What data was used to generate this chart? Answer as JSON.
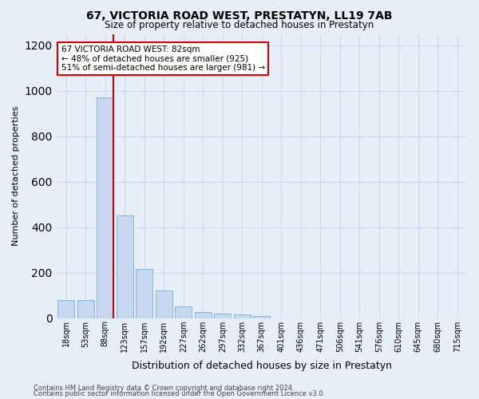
{
  "title": "67, VICTORIA ROAD WEST, PRESTATYN, LL19 7AB",
  "subtitle": "Size of property relative to detached houses in Prestatyn",
  "xlabel": "Distribution of detached houses by size in Prestatyn",
  "ylabel": "Number of detached properties",
  "bar_color": "#c5d8f0",
  "bar_edge_color": "#7aafd4",
  "bg_color": "#e8eef8",
  "grid_color": "#d0d8e8",
  "categories": [
    "18sqm",
    "53sqm",
    "88sqm",
    "123sqm",
    "157sqm",
    "192sqm",
    "227sqm",
    "262sqm",
    "297sqm",
    "332sqm",
    "367sqm",
    "401sqm",
    "436sqm",
    "471sqm",
    "506sqm",
    "541sqm",
    "576sqm",
    "610sqm",
    "645sqm",
    "680sqm",
    "715sqm"
  ],
  "values": [
    80,
    80,
    970,
    450,
    215,
    120,
    50,
    25,
    20,
    15,
    10,
    0,
    0,
    0,
    0,
    0,
    0,
    0,
    0,
    0,
    0
  ],
  "marker_bin_index": 2,
  "marker_color": "#cc0000",
  "annotation_text": "67 VICTORIA ROAD WEST: 82sqm\n← 48% of detached houses are smaller (925)\n51% of semi-detached houses are larger (981) →",
  "annotation_box_color": "#ffffff",
  "annotation_border_color": "#cc0000",
  "ylim": [
    0,
    1250
  ],
  "yticks": [
    0,
    200,
    400,
    600,
    800,
    1000,
    1200
  ],
  "footer1": "Contains HM Land Registry data © Crown copyright and database right 2024.",
  "footer2": "Contains public sector information licensed under the Open Government Licence v3.0."
}
